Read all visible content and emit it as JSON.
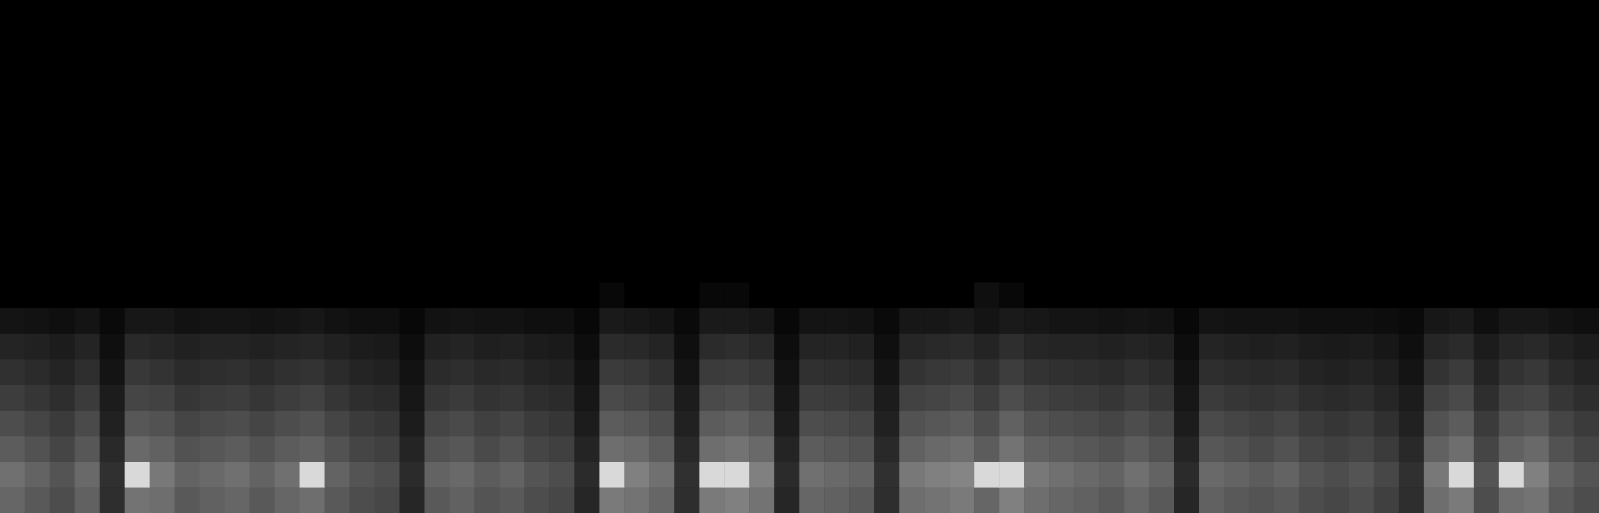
{
  "chart_data": {
    "type": "heatmap",
    "tick_labels": false,
    "grid": false,
    "zlim": [
      0,
      100
    ],
    "cells": [
      [
        40,
        35,
        30,
        38,
        18,
        45,
        43,
        35,
        38,
        40,
        35,
        40,
        43,
        35,
        30,
        28,
        15,
        35,
        38,
        33,
        35,
        30,
        28,
        15,
        48,
        45,
        40,
        18,
        48,
        50,
        45,
        15,
        40,
        38,
        35,
        18,
        43,
        45,
        48,
        40,
        50,
        43,
        40,
        38,
        35,
        40,
        35,
        15,
        38,
        35,
        33,
        35,
        30,
        28,
        30,
        25,
        18,
        43,
        48,
        30,
        43,
        45,
        35,
        30
      ],
      [
        44,
        39,
        33,
        41,
        19,
        85,
        47,
        39,
        41,
        44,
        39,
        44,
        85,
        39,
        33,
        30,
        17,
        39,
        41,
        36,
        39,
        33,
        30,
        17,
        85,
        50,
        44,
        19,
        85,
        85,
        50,
        17,
        44,
        41,
        39,
        19,
        47,
        50,
        52,
        85,
        85,
        47,
        44,
        41,
        39,
        44,
        39,
        17,
        41,
        39,
        36,
        39,
        33,
        30,
        33,
        28,
        19,
        47,
        85,
        33,
        85,
        50,
        39,
        33
      ],
      [
        36,
        32,
        27,
        34,
        16,
        41,
        38,
        32,
        34,
        36,
        32,
        36,
        38,
        32,
        27,
        25,
        14,
        32,
        34,
        29,
        32,
        27,
        25,
        14,
        43,
        41,
        36,
        16,
        43,
        45,
        41,
        14,
        36,
        34,
        32,
        16,
        38,
        41,
        43,
        36,
        45,
        38,
        36,
        34,
        32,
        36,
        32,
        14,
        34,
        32,
        29,
        32,
        27,
        25,
        27,
        23,
        16,
        38,
        43,
        27,
        38,
        41,
        32,
        27
      ],
      [
        30,
        27,
        23,
        29,
        13,
        34,
        32,
        27,
        29,
        30,
        27,
        30,
        32,
        27,
        23,
        21,
        11,
        27,
        29,
        25,
        27,
        23,
        21,
        11,
        36,
        34,
        30,
        13,
        36,
        38,
        34,
        11,
        30,
        29,
        27,
        13,
        32,
        34,
        36,
        30,
        38,
        32,
        30,
        29,
        27,
        30,
        27,
        11,
        29,
        27,
        25,
        27,
        23,
        21,
        23,
        19,
        13,
        32,
        36,
        23,
        32,
        34,
        27,
        23
      ],
      [
        24,
        21,
        18,
        23,
        11,
        27,
        26,
        21,
        23,
        24,
        21,
        24,
        26,
        21,
        18,
        17,
        9,
        21,
        23,
        20,
        21,
        18,
        17,
        9,
        29,
        27,
        24,
        11,
        29,
        30,
        27,
        9,
        24,
        23,
        21,
        11,
        26,
        27,
        29,
        24,
        30,
        26,
        24,
        23,
        21,
        24,
        21,
        9,
        23,
        21,
        20,
        21,
        18,
        17,
        18,
        15,
        11,
        26,
        29,
        18,
        26,
        27,
        21,
        18
      ],
      [
        19,
        17,
        14,
        18,
        8,
        22,
        20,
        17,
        18,
        19,
        17,
        19,
        20,
        17,
        14,
        13,
        7,
        17,
        18,
        16,
        17,
        14,
        13,
        7,
        23,
        22,
        19,
        8,
        23,
        24,
        22,
        7,
        19,
        18,
        17,
        8,
        20,
        22,
        23,
        19,
        24,
        20,
        19,
        18,
        17,
        19,
        17,
        7,
        18,
        17,
        16,
        17,
        14,
        13,
        14,
        12,
        8,
        20,
        23,
        14,
        20,
        22,
        17,
        14
      ],
      [
        14,
        13,
        11,
        14,
        6,
        16,
        15,
        13,
        14,
        14,
        13,
        14,
        15,
        13,
        11,
        10,
        5,
        13,
        14,
        12,
        13,
        11,
        10,
        5,
        17,
        16,
        14,
        6,
        17,
        18,
        16,
        5,
        14,
        14,
        13,
        6,
        15,
        16,
        17,
        14,
        18,
        15,
        14,
        14,
        13,
        14,
        13,
        5,
        14,
        13,
        12,
        13,
        11,
        10,
        11,
        9,
        6,
        15,
        17,
        11,
        15,
        16,
        13,
        11
      ],
      [
        8,
        7,
        6,
        8,
        4,
        9,
        9,
        7,
        8,
        8,
        7,
        8,
        9,
        7,
        6,
        6,
        3,
        7,
        8,
        7,
        7,
        6,
        6,
        3,
        10,
        9,
        8,
        4,
        10,
        10,
        9,
        3,
        8,
        8,
        7,
        4,
        9,
        9,
        10,
        8,
        10,
        9,
        8,
        8,
        7,
        8,
        7,
        3,
        8,
        7,
        7,
        7,
        6,
        6,
        6,
        5,
        4,
        9,
        10,
        6,
        9,
        9,
        7,
        6
      ],
      [
        0,
        0,
        0,
        0,
        0,
        0,
        0,
        0,
        0,
        0,
        0,
        0,
        0,
        0,
        0,
        0,
        0,
        0,
        0,
        0,
        0,
        0,
        0,
        0,
        3,
        0,
        0,
        0,
        3,
        3,
        0,
        0,
        0,
        0,
        0,
        0,
        0,
        0,
        0,
        6,
        3,
        0,
        0,
        0,
        0,
        0,
        0,
        0,
        0,
        0,
        0,
        0,
        0,
        0,
        0,
        0,
        0,
        0,
        0,
        0,
        0,
        0,
        0,
        0
      ],
      [
        0,
        0,
        0,
        0,
        0,
        0,
        0,
        0,
        0,
        0,
        0,
        0,
        0,
        0,
        0,
        0,
        0,
        0,
        0,
        0,
        0,
        0,
        0,
        0,
        0,
        0,
        0,
        0,
        0,
        0,
        0,
        0,
        0,
        0,
        0,
        0,
        0,
        0,
        0,
        0,
        0,
        0,
        0,
        0,
        0,
        0,
        0,
        0,
        0,
        0,
        0,
        0,
        0,
        0,
        0,
        0,
        0,
        0,
        0,
        0,
        0,
        0,
        0,
        0
      ],
      [
        0,
        0,
        0,
        0,
        0,
        0,
        0,
        0,
        0,
        0,
        0,
        0,
        0,
        0,
        0,
        0,
        0,
        0,
        0,
        0,
        0,
        0,
        0,
        0,
        0,
        0,
        0,
        0,
        0,
        0,
        0,
        0,
        0,
        0,
        0,
        0,
        0,
        0,
        0,
        0,
        0,
        0,
        0,
        0,
        0,
        0,
        0,
        0,
        0,
        0,
        0,
        0,
        0,
        0,
        0,
        0,
        0,
        0,
        0,
        0,
        0,
        0,
        0,
        0
      ],
      [
        0,
        0,
        0,
        0,
        0,
        0,
        0,
        0,
        0,
        0,
        0,
        0,
        0,
        0,
        0,
        0,
        0,
        0,
        0,
        0,
        0,
        0,
        0,
        0,
        0,
        0,
        0,
        0,
        0,
        0,
        0,
        0,
        0,
        0,
        0,
        0,
        0,
        0,
        0,
        0,
        0,
        0,
        0,
        0,
        0,
        0,
        0,
        0,
        0,
        0,
        0,
        0,
        0,
        0,
        0,
        0,
        0,
        0,
        0,
        0,
        0,
        0,
        0,
        0
      ],
      [
        0,
        0,
        0,
        0,
        0,
        0,
        0,
        0,
        0,
        0,
        0,
        0,
        0,
        0,
        0,
        0,
        0,
        0,
        0,
        0,
        0,
        0,
        0,
        0,
        0,
        0,
        0,
        0,
        0,
        0,
        0,
        0,
        0,
        0,
        0,
        0,
        0,
        0,
        0,
        0,
        0,
        0,
        0,
        0,
        0,
        0,
        0,
        0,
        0,
        0,
        0,
        0,
        0,
        0,
        0,
        0,
        0,
        0,
        0,
        0,
        0,
        0,
        0,
        0
      ],
      [
        0,
        0,
        0,
        0,
        0,
        0,
        0,
        0,
        0,
        0,
        0,
        0,
        0,
        0,
        0,
        0,
        0,
        0,
        0,
        0,
        0,
        0,
        0,
        0,
        0,
        0,
        0,
        0,
        0,
        0,
        0,
        0,
        0,
        0,
        0,
        0,
        0,
        0,
        0,
        0,
        0,
        0,
        0,
        0,
        0,
        0,
        0,
        0,
        0,
        0,
        0,
        0,
        0,
        0,
        0,
        0,
        0,
        0,
        0,
        0,
        0,
        0,
        0,
        0
      ],
      [
        0,
        0,
        0,
        0,
        0,
        0,
        0,
        0,
        0,
        0,
        0,
        0,
        0,
        0,
        0,
        0,
        0,
        0,
        0,
        0,
        0,
        0,
        0,
        0,
        0,
        0,
        0,
        0,
        0,
        0,
        0,
        0,
        0,
        0,
        0,
        0,
        0,
        0,
        0,
        0,
        0,
        0,
        0,
        0,
        0,
        0,
        0,
        0,
        0,
        0,
        0,
        0,
        0,
        0,
        0,
        0,
        0,
        0,
        0,
        0,
        0,
        0,
        0,
        0
      ],
      [
        0,
        0,
        0,
        0,
        0,
        0,
        0,
        0,
        0,
        0,
        0,
        0,
        0,
        0,
        0,
        0,
        0,
        0,
        0,
        0,
        0,
        0,
        0,
        0,
        0,
        0,
        0,
        0,
        0,
        0,
        0,
        0,
        0,
        0,
        0,
        0,
        0,
        0,
        0,
        0,
        0,
        0,
        0,
        0,
        0,
        0,
        0,
        0,
        0,
        0,
        0,
        0,
        0,
        0,
        0,
        0,
        0,
        0,
        0,
        0,
        0,
        0,
        0,
        0
      ],
      [
        0,
        0,
        0,
        0,
        0,
        0,
        0,
        0,
        0,
        0,
        0,
        0,
        0,
        0,
        0,
        0,
        0,
        0,
        0,
        0,
        0,
        0,
        0,
        0,
        0,
        0,
        0,
        0,
        0,
        0,
        0,
        0,
        0,
        0,
        0,
        0,
        0,
        0,
        0,
        0,
        0,
        0,
        0,
        0,
        0,
        0,
        0,
        0,
        0,
        0,
        0,
        0,
        0,
        0,
        0,
        0,
        0,
        0,
        0,
        0,
        0,
        0,
        0,
        0
      ],
      [
        0,
        0,
        0,
        0,
        0,
        0,
        0,
        0,
        0,
        0,
        0,
        0,
        0,
        0,
        0,
        0,
        0,
        0,
        0,
        0,
        0,
        0,
        0,
        0,
        0,
        0,
        0,
        0,
        0,
        0,
        0,
        0,
        0,
        0,
        0,
        0,
        0,
        0,
        0,
        0,
        0,
        0,
        0,
        0,
        0,
        0,
        0,
        0,
        0,
        0,
        0,
        0,
        0,
        0,
        0,
        0,
        0,
        0,
        0,
        0,
        0,
        0,
        0,
        0
      ],
      [
        0,
        0,
        0,
        0,
        0,
        0,
        0,
        0,
        0,
        0,
        0,
        0,
        0,
        0,
        0,
        0,
        0,
        0,
        0,
        0,
        0,
        0,
        0,
        0,
        0,
        0,
        0,
        0,
        0,
        0,
        0,
        0,
        0,
        0,
        0,
        0,
        0,
        0,
        0,
        0,
        0,
        0,
        0,
        0,
        0,
        0,
        0,
        0,
        0,
        0,
        0,
        0,
        0,
        0,
        0,
        0,
        0,
        0,
        0,
        0,
        0,
        0,
        0,
        0
      ],
      [
        0,
        0,
        0,
        0,
        0,
        0,
        0,
        0,
        0,
        0,
        0,
        0,
        0,
        0,
        0,
        0,
        0,
        0,
        0,
        0,
        0,
        0,
        0,
        0,
        0,
        0,
        0,
        0,
        0,
        0,
        0,
        0,
        0,
        0,
        0,
        0,
        0,
        0,
        0,
        0,
        0,
        0,
        0,
        0,
        0,
        0,
        0,
        0,
        0,
        0,
        0,
        0,
        0,
        0,
        0,
        0,
        0,
        0,
        0,
        0,
        0,
        0,
        0,
        0
      ]
    ]
  }
}
